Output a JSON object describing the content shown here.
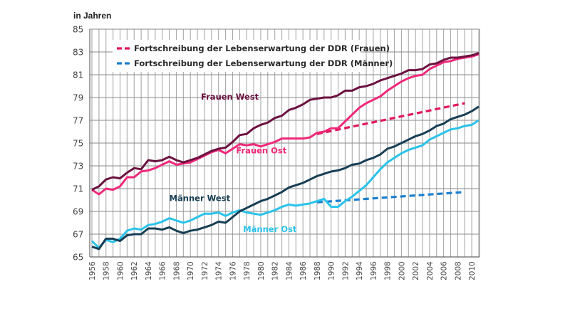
{
  "chart_data": {
    "type": "line",
    "title": "",
    "ylabel": "in Jahren",
    "xlabel": "",
    "xlim": [
      1956,
      2011
    ],
    "ylim": [
      65,
      85
    ],
    "grid": true,
    "y_ticks": [
      "65",
      "67",
      "69",
      "71",
      "73",
      "75",
      "77",
      "79",
      "81",
      "83",
      "85"
    ],
    "x_ticks": [
      "1956",
      "1958",
      "1960",
      "1962",
      "1964",
      "1966",
      "1968",
      "1970",
      "1972",
      "1974",
      "1976",
      "1978",
      "1980",
      "1982",
      "1984",
      "1986",
      "1988",
      "1990",
      "1992",
      "1994",
      "1996",
      "1998",
      "2000",
      "2002",
      "2004",
      "2006",
      "2008",
      "2010"
    ],
    "legend": {
      "position": "top-left",
      "entries": [
        {
          "label": "Fortschreibung der Lebenserwartung der DDR (Frauen)",
          "color": "#e2175b",
          "style": "dashed"
        },
        {
          "label": "Fortschreibung der Lebenserwartung der DDR (Männer)",
          "color": "#1a7fcf",
          "style": "dashed"
        }
      ]
    },
    "series": [
      {
        "name": "Frauen West",
        "color": "#6b1140",
        "style": "solid",
        "x": [
          1956,
          1957,
          1958,
          1959,
          1960,
          1961,
          1962,
          1963,
          1964,
          1965,
          1966,
          1967,
          1968,
          1969,
          1970,
          1971,
          1972,
          1973,
          1974,
          1975,
          1976,
          1977,
          1978,
          1979,
          1980,
          1981,
          1982,
          1983,
          1984,
          1985,
          1986,
          1987,
          1988,
          1989,
          1990,
          1991,
          1992,
          1993,
          1994,
          1995,
          1996,
          1997,
          1998,
          1999,
          2000,
          2001,
          2002,
          2003,
          2004,
          2005,
          2006,
          2007,
          2008,
          2009,
          2010,
          2011
        ],
        "values": [
          70.9,
          71.2,
          71.8,
          72.0,
          71.9,
          72.4,
          72.8,
          72.7,
          73.5,
          73.4,
          73.5,
          73.8,
          73.5,
          73.3,
          73.5,
          73.7,
          74.0,
          74.3,
          74.5,
          74.6,
          75.1,
          75.7,
          75.8,
          76.3,
          76.6,
          76.8,
          77.2,
          77.4,
          77.9,
          78.1,
          78.4,
          78.8,
          78.9,
          79.0,
          79.0,
          79.2,
          79.6,
          79.6,
          79.9,
          80.0,
          80.2,
          80.5,
          80.7,
          80.9,
          81.1,
          81.4,
          81.4,
          81.5,
          81.9,
          82.0,
          82.3,
          82.5,
          82.5,
          82.6,
          82.7,
          82.9
        ]
      },
      {
        "name": "Frauen Ost",
        "color": "#f0287a",
        "style": "solid",
        "x": [
          1956,
          1957,
          1958,
          1959,
          1960,
          1961,
          1962,
          1963,
          1964,
          1965,
          1966,
          1967,
          1968,
          1969,
          1970,
          1971,
          1972,
          1973,
          1974,
          1975,
          1976,
          1977,
          1978,
          1979,
          1980,
          1981,
          1982,
          1983,
          1984,
          1985,
          1986,
          1987,
          1988,
          1989,
          1990,
          1991,
          1992,
          1993,
          1994,
          1995,
          1996,
          1997,
          1998,
          1999,
          2000,
          2001,
          2002,
          2003,
          2004,
          2005,
          2006,
          2007,
          2008,
          2009,
          2010,
          2011
        ],
        "values": [
          70.9,
          70.5,
          71.0,
          70.9,
          71.2,
          72.0,
          72.0,
          72.5,
          72.6,
          72.8,
          73.1,
          73.4,
          73.1,
          73.2,
          73.3,
          73.6,
          73.9,
          74.2,
          74.4,
          74.1,
          74.5,
          74.9,
          74.8,
          74.9,
          74.7,
          74.9,
          75.1,
          75.4,
          75.4,
          75.4,
          75.4,
          75.5,
          75.9,
          76.0,
          76.3,
          76.3,
          76.9,
          77.5,
          78.1,
          78.5,
          78.8,
          79.1,
          79.6,
          80.0,
          80.4,
          80.7,
          80.9,
          81.0,
          81.5,
          81.8,
          82.1,
          82.2,
          82.4,
          82.5,
          82.6,
          82.8
        ]
      },
      {
        "name": "Männer West",
        "color": "#173e54",
        "style": "solid",
        "x": [
          1956,
          1957,
          1958,
          1959,
          1960,
          1961,
          1962,
          1963,
          1964,
          1965,
          1966,
          1967,
          1968,
          1969,
          1970,
          1971,
          1972,
          1973,
          1974,
          1975,
          1976,
          1977,
          1978,
          1979,
          1980,
          1981,
          1982,
          1983,
          1984,
          1985,
          1986,
          1987,
          1988,
          1989,
          1990,
          1991,
          1992,
          1993,
          1994,
          1995,
          1996,
          1997,
          1998,
          1999,
          2000,
          2001,
          2002,
          2003,
          2004,
          2005,
          2006,
          2007,
          2008,
          2009,
          2010,
          2011
        ],
        "values": [
          65.9,
          65.7,
          66.6,
          66.6,
          66.4,
          66.9,
          67.0,
          67.0,
          67.5,
          67.5,
          67.4,
          67.6,
          67.3,
          67.1,
          67.3,
          67.4,
          67.6,
          67.8,
          68.1,
          68.0,
          68.5,
          69.0,
          69.3,
          69.6,
          69.9,
          70.1,
          70.4,
          70.7,
          71.1,
          71.3,
          71.5,
          71.8,
          72.1,
          72.3,
          72.5,
          72.6,
          72.8,
          73.1,
          73.2,
          73.5,
          73.7,
          74.0,
          74.5,
          74.7,
          75.0,
          75.3,
          75.6,
          75.8,
          76.1,
          76.5,
          76.7,
          77.1,
          77.3,
          77.5,
          77.8,
          78.2
        ]
      },
      {
        "name": "Männer Ost",
        "color": "#29c3ea",
        "style": "solid",
        "x": [
          1956,
          1957,
          1958,
          1959,
          1960,
          1961,
          1962,
          1963,
          1964,
          1965,
          1966,
          1967,
          1968,
          1969,
          1970,
          1971,
          1972,
          1973,
          1974,
          1975,
          1976,
          1977,
          1978,
          1979,
          1980,
          1981,
          1982,
          1983,
          1984,
          1985,
          1986,
          1987,
          1988,
          1989,
          1990,
          1991,
          1992,
          1993,
          1994,
          1995,
          1996,
          1997,
          1998,
          1999,
          2000,
          2001,
          2002,
          2003,
          2004,
          2005,
          2006,
          2007,
          2008,
          2009,
          2010,
          2011
        ],
        "values": [
          66.4,
          65.8,
          66.5,
          66.3,
          66.6,
          67.3,
          67.5,
          67.4,
          67.8,
          67.9,
          68.1,
          68.4,
          68.2,
          68.0,
          68.2,
          68.5,
          68.8,
          68.8,
          68.9,
          68.6,
          68.9,
          69.1,
          68.9,
          68.8,
          68.7,
          68.9,
          69.1,
          69.4,
          69.6,
          69.5,
          69.6,
          69.7,
          69.9,
          70.1,
          69.4,
          69.4,
          69.9,
          70.3,
          70.8,
          71.3,
          72.0,
          72.7,
          73.3,
          73.7,
          74.1,
          74.4,
          74.6,
          74.8,
          75.3,
          75.6,
          75.9,
          76.2,
          76.3,
          76.5,
          76.6,
          77.0
        ]
      },
      {
        "name": "Fortschreibung der Lebenserwartung der DDR (Frauen)",
        "color": "#e2175b",
        "style": "dashed",
        "x": [
          1988,
          2009
        ],
        "values": [
          75.8,
          78.5
        ]
      },
      {
        "name": "Fortschreibung der Lebenserwartung der DDR (Männer)",
        "color": "#1a7fcf",
        "style": "dashed",
        "x": [
          1988,
          2009
        ],
        "values": [
          69.8,
          70.7
        ]
      }
    ],
    "annotations": [
      {
        "text": "Frauen West",
        "color": "#6b1140",
        "x": 1971.5,
        "y": 78.8
      },
      {
        "text": "Frauen Ost",
        "color": "#f0287a",
        "x": 1976.5,
        "y": 74.1
      },
      {
        "text": "Männer West",
        "color": "#173e54",
        "x": 1967,
        "y": 69.9
      },
      {
        "text": "Männer Ost",
        "color": "#29c3ea",
        "x": 1977.5,
        "y": 67.2
      }
    ]
  }
}
